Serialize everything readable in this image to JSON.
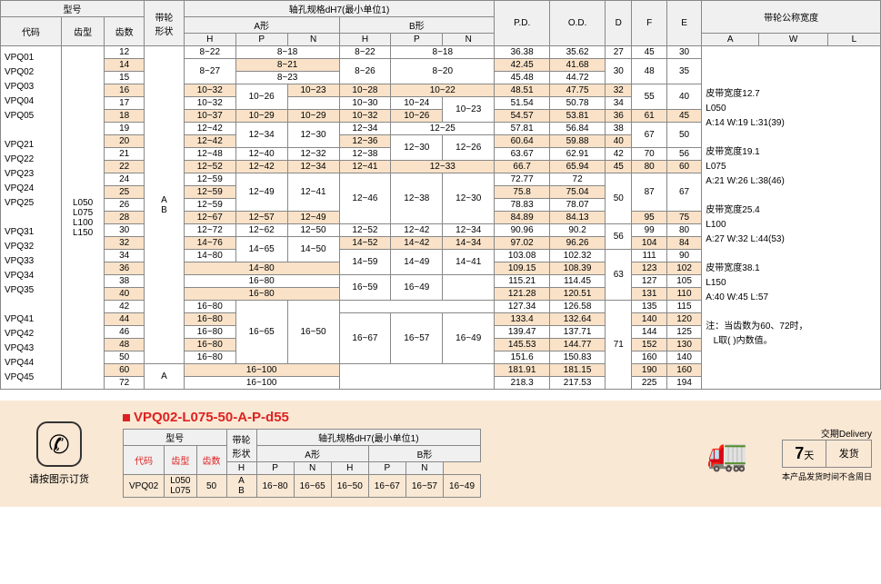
{
  "headers": {
    "model": "型号",
    "pulley_shape": "带轮\n形状",
    "bore_spec": "轴孔规格dH7(最小单位1)",
    "a_shape": "A形",
    "b_shape": "B形",
    "pd": "P.D.",
    "od": "O.D.",
    "d": "D",
    "f": "F",
    "e": "E",
    "nominal_width": "带轮公称宽度",
    "code": "代码",
    "tooth_type": "齿型",
    "teeth": "齿数",
    "h": "H",
    "p": "P",
    "n": "N",
    "a": "A",
    "w": "W",
    "l": "L"
  },
  "codes": [
    "VPQ01",
    "VPQ02",
    "VPQ03",
    "VPQ04",
    "VPQ05",
    "",
    "VPQ21",
    "VPQ22",
    "VPQ23",
    "VPQ24",
    "VPQ25",
    "",
    "VPQ31",
    "VPQ32",
    "VPQ33",
    "VPQ34",
    "VPQ35",
    "",
    "VPQ41",
    "VPQ42",
    "VPQ43",
    "VPQ44",
    "VPQ45"
  ],
  "tooth_types": "L050\nL075\nL100\nL150",
  "shape_ab": "A\nB",
  "shape_a": "A",
  "rows": [
    {
      "t": "12",
      "ah": "8~22",
      "apn": "8~18",
      "bh": "8~22",
      "bpn": "8~18",
      "pd": "36.38",
      "od": "35.62",
      "d": "27",
      "f": "45",
      "e": "30"
    },
    {
      "t": "14",
      "hl": 1,
      "ah": "8~27",
      "ap": "8~21",
      "bh": "8~26",
      "bpn": "8~20",
      "pd": "42.45",
      "od": "41.68",
      "d": "30",
      "f": "48",
      "e": "35"
    },
    {
      "t": "15",
      "an": "8~23",
      "pd": "45.48",
      "od": "44.72"
    },
    {
      "t": "16",
      "hl": 1,
      "ah": "10~32",
      "ap": "10~26",
      "an": "10~23",
      "bh": "10~28",
      "bp": "10~22",
      "pd": "48.51",
      "od": "47.75",
      "d": "32",
      "f": "55",
      "e": "40"
    },
    {
      "t": "17",
      "ah": "10~32",
      "bh": "10~30",
      "bp": "10~24",
      "bn": "10~23",
      "pd": "51.54",
      "od": "50.78",
      "d": "34"
    },
    {
      "t": "18",
      "hl": 1,
      "ah": "10~37",
      "ap": "10~29",
      "an": "10~29",
      "bh": "10~32",
      "bp": "10~26",
      "pd": "54.57",
      "od": "53.81",
      "d": "36",
      "f": "61",
      "e": "45"
    },
    {
      "t": "19",
      "ah": "12~42",
      "ap": "12~34",
      "an": "12~30",
      "bh": "12~34",
      "bp": "12~25",
      "pd": "57.81",
      "od": "56.84",
      "d": "38",
      "f": "67",
      "e": "50"
    },
    {
      "t": "20",
      "hl": 1,
      "ah": "12~42",
      "bh": "12~36",
      "bp": "12~30",
      "bn": "12~26",
      "pd": "60.64",
      "od": "59.88",
      "d": "40"
    },
    {
      "t": "21",
      "ah": "12~48",
      "ap": "12~40",
      "an": "12~32",
      "bh": "12~38",
      "pd": "63.67",
      "od": "62.91",
      "d": "42",
      "f": "70",
      "e": "56"
    },
    {
      "t": "22",
      "hl": 1,
      "ah": "12~52",
      "ap": "12~42",
      "an": "12~34",
      "bh": "12~41",
      "bp": "12~33",
      "pd": "66.7",
      "od": "65.94",
      "d": "45",
      "f": "80",
      "e": "60"
    },
    {
      "t": "24",
      "ah": "12~59",
      "ap": "12~49",
      "an": "12~41",
      "bh": "12~46",
      "bp": "12~38",
      "bn": "12~30",
      "pd": "72.77",
      "od": "72",
      "d": "50",
      "f": "87",
      "e": "67"
    },
    {
      "t": "25",
      "hl": 1,
      "ah": "12~59",
      "pd": "75.8",
      "od": "75.04"
    },
    {
      "t": "26",
      "ah": "12~59",
      "pd": "78.83",
      "od": "78.07"
    },
    {
      "t": "28",
      "hl": 1,
      "ah": "12~67",
      "ap": "12~57",
      "an": "12~49",
      "pd": "84.89",
      "od": "84.13",
      "f": "95",
      "e": "75"
    },
    {
      "t": "30",
      "ah": "12~72",
      "ap": "12~62",
      "an": "12~50",
      "bh": "12~52",
      "bp": "12~42",
      "bn": "12~34",
      "pd": "90.96",
      "od": "90.2",
      "d": "56",
      "f": "99",
      "e": "80"
    },
    {
      "t": "32",
      "hl": 1,
      "ah": "14~76",
      "ap": "14~65",
      "an": "14~50",
      "bh": "14~52",
      "bp": "14~42",
      "bn": "14~34",
      "pd": "97.02",
      "od": "96.26",
      "f": "104",
      "e": "84"
    },
    {
      "t": "34",
      "ah": "14~80",
      "bh": "14~59",
      "bp": "14~49",
      "bn": "14~41",
      "pd": "103.08",
      "od": "102.32",
      "d": "63",
      "f": "111",
      "e": "90"
    },
    {
      "t": "36",
      "hl": 1,
      "ah": "14~80",
      "pd": "109.15",
      "od": "108.39",
      "f": "123",
      "e": "102"
    },
    {
      "t": "38",
      "ah": "16~80",
      "bh": "16~59",
      "bp": "16~49",
      "pd": "115.21",
      "od": "114.45",
      "f": "127",
      "e": "105"
    },
    {
      "t": "40",
      "hl": 1,
      "ah": "16~80",
      "pd": "121.28",
      "od": "120.51",
      "f": "131",
      "e": "110"
    },
    {
      "t": "42",
      "ah": "16~80",
      "ap": "16~65",
      "an": "16~50",
      "pd": "127.34",
      "od": "126.58",
      "d": "71",
      "f": "135",
      "e": "115"
    },
    {
      "t": "44",
      "hl": 1,
      "ah": "16~80",
      "bh": "16~67",
      "bp": "16~57",
      "bn": "16~49",
      "pd": "133.4",
      "od": "132.64",
      "f": "140",
      "e": "120"
    },
    {
      "t": "46",
      "ah": "16~80",
      "pd": "139.47",
      "od": "137.71",
      "f": "144",
      "e": "125"
    },
    {
      "t": "48",
      "hl": 1,
      "ah": "16~80",
      "pd": "145.53",
      "od": "144.77",
      "f": "152",
      "e": "130"
    },
    {
      "t": "50",
      "ah": "16~80",
      "pd": "151.6",
      "od": "150.83",
      "f": "160",
      "e": "140"
    },
    {
      "t": "60",
      "hl": 1,
      "sh": "A",
      "ah": "16~100",
      "pd": "181.91",
      "od": "181.15",
      "f": "190",
      "e": "160"
    },
    {
      "t": "72",
      "ah": "16~100",
      "pd": "218.3",
      "od": "217.53",
      "f": "225",
      "e": "194"
    }
  ],
  "notes": {
    "n1": "皮带宽度12.7",
    "n1a": "L050",
    "n1b": "A:14 W:19 L:31(39)",
    "n2": "皮带宽度19.1",
    "n2a": "L075",
    "n2b": "A:21 W:26 L:38(46)",
    "n3": "皮带宽度25.4",
    "n3a": "L100",
    "n3b": "A:27 W:32 L:44(53)",
    "n4": "皮带宽度38.1",
    "n4a": "L150",
    "n4b": "A:40 W:45 L:57",
    "n5": "注：当齿数为60、72时，",
    "n5a": "L取( )内数值。"
  },
  "bottom": {
    "order_instruction": "请按图示订货",
    "part": "VPQ02-L075-50-A-P-d55",
    "ex": {
      "code": "VPQ02",
      "tt": "L050\nL075",
      "teeth": "50",
      "shape": "A\nB",
      "ah": "16~80",
      "ap": "16~65",
      "an": "16~50",
      "bh": "16~67",
      "bp": "16~57",
      "bn": "16~49"
    },
    "delivery_label": "交期Delivery",
    "days": "7",
    "days_unit": "天",
    "ship": "发货",
    "ship_note": "本产品发货时间不含周日"
  }
}
